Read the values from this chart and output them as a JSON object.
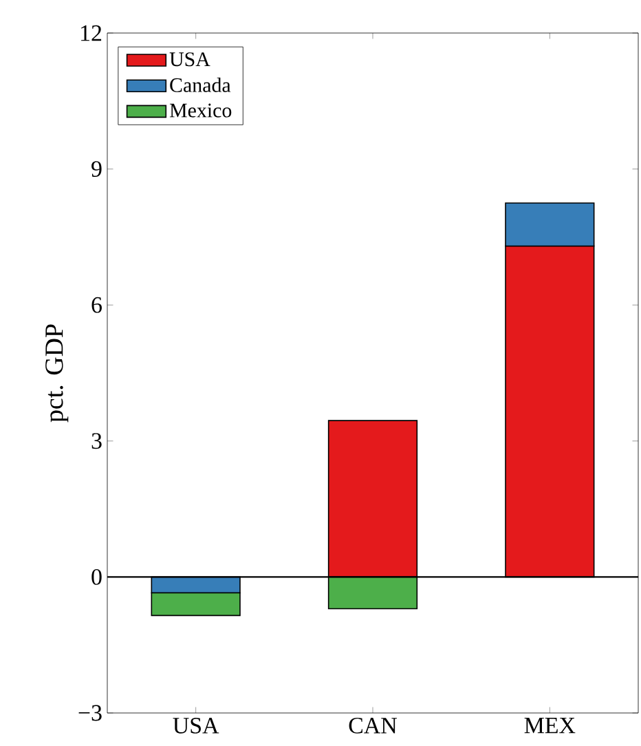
{
  "chart_data": {
    "type": "bar",
    "stacked": true,
    "ylabel": "pct. GDP",
    "categories": [
      "USA",
      "CAN",
      "MEX"
    ],
    "series": [
      {
        "name": "USA",
        "color": "#e41a1c",
        "values": [
          null,
          3.45,
          7.3
        ]
      },
      {
        "name": "Canada",
        "color": "#377eb8",
        "values": [
          -0.35,
          null,
          0.95
        ]
      },
      {
        "name": "Mexico",
        "color": "#4daf4a",
        "values": [
          -0.5,
          -0.7,
          null
        ]
      }
    ],
    "ylim": [
      -3,
      12
    ],
    "yticks": [
      {
        "value": -3,
        "label": "−3"
      },
      0,
      3,
      6,
      9,
      12
    ],
    "ref_lines": [
      {
        "axis": "y",
        "value": 0
      }
    ],
    "legend": "top left",
    "grid": false
  }
}
